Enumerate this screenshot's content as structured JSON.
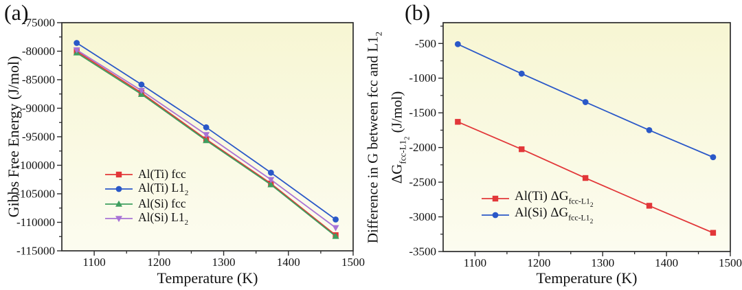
{
  "figure": {
    "panels": [
      {
        "tag": "(a)"
      },
      {
        "tag": "(b)"
      }
    ]
  },
  "chart_data": [
    {
      "id": "a",
      "type": "line",
      "title": "",
      "xlabel": "Temperature (K)",
      "ylabel": "Gibbs Free Energy (J/mol)",
      "xlim": [
        1050,
        1500
      ],
      "ylim": [
        -115000,
        -75000
      ],
      "x_ticks": [
        1100,
        1200,
        1300,
        1400,
        1500
      ],
      "x_minor_step": 50,
      "y_ticks": [
        -75000,
        -80000,
        -85000,
        -90000,
        -95000,
        -100000,
        -105000,
        -110000,
        -115000
      ],
      "y_minor_step": 2500,
      "grid": false,
      "legend_position": "inside lower-left",
      "plot_bg_top": "#f7f6d3",
      "plot_bg_bottom": "#fcfcf0",
      "x": [
        1073,
        1173,
        1273,
        1373,
        1473
      ],
      "series": [
        {
          "key": "al-ti-fcc",
          "name_parts": [
            [
              "Al(Ti) fcc",
              0
            ]
          ],
          "marker": "square",
          "color": "#e23739",
          "values": [
            -80030,
            -87300,
            -95450,
            -103200,
            -112250
          ]
        },
        {
          "key": "al-ti-l12",
          "name_parts": [
            [
              "Al(Ti) L1",
              0
            ],
            [
              "2",
              1
            ]
          ],
          "marker": "circle",
          "color": "#2a58c8",
          "values": [
            -78550,
            -85850,
            -93350,
            -101300,
            -109500
          ]
        },
        {
          "key": "al-si-fcc",
          "name_parts": [
            [
              "Al(Si) fcc",
              0
            ]
          ],
          "marker": "triangle-up",
          "color": "#3f9e5f",
          "values": [
            -80280,
            -87550,
            -95650,
            -103400,
            -112450
          ]
        },
        {
          "key": "al-si-l12",
          "name_parts": [
            [
              "Al(Si) L1",
              0
            ],
            [
              "2",
              1
            ]
          ],
          "marker": "triangle-down",
          "color": "#a873d6",
          "values": [
            -79780,
            -86900,
            -94640,
            -102520,
            -110950
          ]
        }
      ]
    },
    {
      "id": "b",
      "type": "line",
      "title": "",
      "xlabel": "Temperature (K)",
      "ylabel_line1_parts": [
        [
          "Difference in G between fcc and L1",
          0
        ],
        [
          "2",
          1
        ]
      ],
      "ylabel_line2_parts": [
        [
          "ΔG",
          0
        ],
        [
          "fcc-L1",
          1
        ],
        [
          "2",
          2
        ],
        [
          " (J/mol)",
          0
        ]
      ],
      "xlim": [
        1050,
        1500
      ],
      "ylim": [
        -3500,
        -200
      ],
      "x_ticks": [
        1100,
        1200,
        1300,
        1400,
        1500
      ],
      "x_minor_step": 50,
      "y_ticks": [
        -500,
        -1000,
        -1500,
        -2000,
        -2500,
        -3000,
        -3500
      ],
      "y_minor_step": 250,
      "grid": false,
      "legend_position": "inside left-middle",
      "plot_bg_top": "#f7f6d3",
      "plot_bg_bottom": "#fcfcf0",
      "x": [
        1073,
        1173,
        1273,
        1373,
        1473
      ],
      "series": [
        {
          "key": "al-ti-dg",
          "name_parts": [
            [
              "Al(Ti) ΔG",
              0
            ],
            [
              "fcc-L1",
              1
            ],
            [
              "2",
              2
            ]
          ],
          "marker": "square",
          "color": "#e23739",
          "values": [
            -1630,
            -2025,
            -2440,
            -2840,
            -3230
          ]
        },
        {
          "key": "al-si-dg",
          "name_parts": [
            [
              "Al(Si) ΔG",
              0
            ],
            [
              "fcc-L1",
              1
            ],
            [
              "2",
              2
            ]
          ],
          "marker": "circle",
          "color": "#2a58c8",
          "values": [
            -510,
            -935,
            -1345,
            -1750,
            -2140
          ]
        }
      ]
    }
  ]
}
